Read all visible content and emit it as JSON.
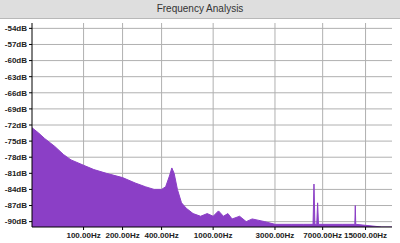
{
  "chart_data": {
    "type": "area",
    "title": "Frequency Analysis",
    "color": "#8b3fc6",
    "log": "x",
    "grid": true,
    "x": [
      40,
      45,
      50,
      60,
      70,
      80,
      100,
      120,
      150,
      200,
      250,
      300,
      350,
      400,
      430,
      460,
      480,
      500,
      530,
      570,
      620,
      700,
      800,
      900,
      1000,
      1100,
      1200,
      1300,
      1400,
      1600,
      1800,
      2000,
      2500,
      3000,
      4000,
      5000,
      5900,
      6000,
      6100,
      6300,
      6400,
      6500,
      10000,
      12400,
      12500,
      12600,
      20000,
      24000
    ],
    "values": [
      -72.5,
      -73.5,
      -74.5,
      -76,
      -77.5,
      -78.5,
      -79.5,
      -80.3,
      -81,
      -81.8,
      -82.8,
      -83.5,
      -84,
      -84,
      -83.5,
      -81.5,
      -80,
      -81,
      -84,
      -86.5,
      -87.5,
      -88.5,
      -89,
      -88.5,
      -89,
      -88,
      -89,
      -88.5,
      -89.5,
      -89,
      -90,
      -89.5,
      -90,
      -90.5,
      -90.5,
      -90.5,
      -90.5,
      -83,
      -90.5,
      -90.5,
      -86.5,
      -90.5,
      -90.5,
      -90.5,
      -87,
      -90.5,
      -91,
      -91
    ],
    "xlim": [
      40,
      24000
    ],
    "xticks": [
      {
        "value": 100,
        "label": "100.00Hz"
      },
      {
        "value": 200,
        "label": "200.00Hz"
      },
      {
        "value": 400,
        "label": "400.00Hz"
      },
      {
        "value": 1000,
        "label": "1000.00Hz"
      },
      {
        "value": 3000,
        "label": "3000.00Hz"
      },
      {
        "value": 7000,
        "label": "7000.00Hz"
      },
      {
        "value": 15000,
        "label": "15000.00Hz"
      }
    ],
    "ylim": [
      -91,
      -53
    ],
    "yticks": [
      {
        "value": -54,
        "label": "-54dB"
      },
      {
        "value": -57,
        "label": "-57dB"
      },
      {
        "value": -60,
        "label": "-60dB"
      },
      {
        "value": -63,
        "label": "-63dB"
      },
      {
        "value": -66,
        "label": "-66dB"
      },
      {
        "value": -69,
        "label": "-69dB"
      },
      {
        "value": -72,
        "label": "-72dB"
      },
      {
        "value": -75,
        "label": "-75dB"
      },
      {
        "value": -78,
        "label": "-78dB"
      },
      {
        "value": -81,
        "label": "-81dB"
      },
      {
        "value": -84,
        "label": "-84dB"
      },
      {
        "value": -87,
        "label": "-87dB"
      },
      {
        "value": -90,
        "label": "-90dB"
      }
    ]
  }
}
